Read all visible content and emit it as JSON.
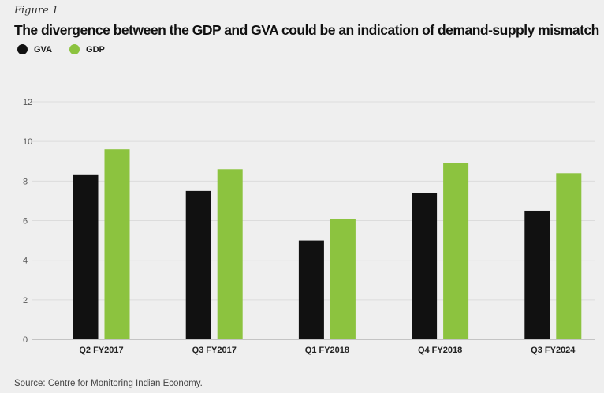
{
  "figure_label": "Figure 1",
  "colors": {
    "GVA": "#111111",
    "GDP": "#8cc33f"
  },
  "source": "Source: Centre for Monitoring Indian Economy.",
  "chart_data": {
    "type": "bar",
    "title": "The divergence between the GDP and GVA could be an indication of demand-supply mismatch",
    "xlabel": "",
    "ylabel": "",
    "ylim": [
      0,
      12
    ],
    "yticks": [
      0,
      2,
      4,
      6,
      8,
      10,
      12
    ],
    "grid": true,
    "legend_position": "top-left",
    "categories": [
      "Q2 FY2017",
      "Q3 FY2017",
      "Q1 FY2018",
      "Q4 FY2018",
      "Q3 FY2024"
    ],
    "series": [
      {
        "name": "GVA",
        "values": [
          8.3,
          7.5,
          5.0,
          7.4,
          6.5
        ]
      },
      {
        "name": "GDP",
        "values": [
          9.6,
          8.6,
          6.1,
          8.9,
          8.4
        ]
      }
    ]
  }
}
